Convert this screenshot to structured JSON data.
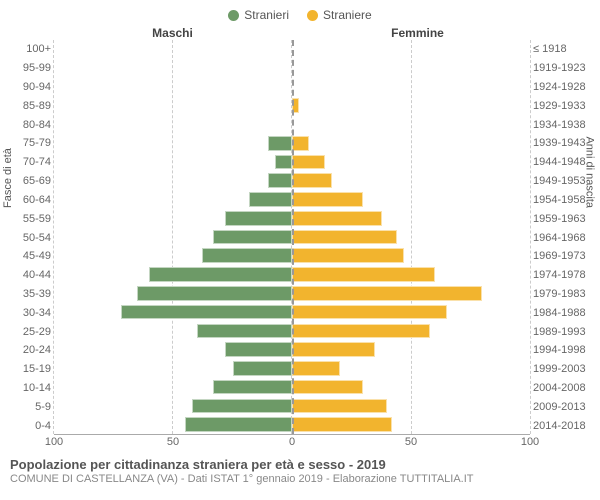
{
  "legend": {
    "male": {
      "label": "Stranieri",
      "color": "#6d9a67"
    },
    "female": {
      "label": "Straniere",
      "color": "#f2b42e"
    }
  },
  "headers": {
    "male": "Maschi",
    "female": "Femmine"
  },
  "axis_titles": {
    "left": "Fasce di età",
    "right": "Anni di nascita"
  },
  "x_axis": {
    "max": 100,
    "ticks": [
      0,
      50,
      100
    ]
  },
  "grid_color": "#cccccc",
  "center_line_color": "#999999",
  "background_color": "#ffffff",
  "rows": [
    {
      "age": "100+",
      "birth": "≤ 1918",
      "m": 0,
      "f": 0
    },
    {
      "age": "95-99",
      "birth": "1919-1923",
      "m": 0,
      "f": 0
    },
    {
      "age": "90-94",
      "birth": "1924-1928",
      "m": 0,
      "f": 0
    },
    {
      "age": "85-89",
      "birth": "1929-1933",
      "m": 0,
      "f": 3
    },
    {
      "age": "80-84",
      "birth": "1934-1938",
      "m": 0,
      "f": 0
    },
    {
      "age": "75-79",
      "birth": "1939-1943",
      "m": 10,
      "f": 7
    },
    {
      "age": "70-74",
      "birth": "1944-1948",
      "m": 7,
      "f": 14
    },
    {
      "age": "65-69",
      "birth": "1949-1953",
      "m": 10,
      "f": 17
    },
    {
      "age": "60-64",
      "birth": "1954-1958",
      "m": 18,
      "f": 30
    },
    {
      "age": "55-59",
      "birth": "1959-1963",
      "m": 28,
      "f": 38
    },
    {
      "age": "50-54",
      "birth": "1964-1968",
      "m": 33,
      "f": 44
    },
    {
      "age": "45-49",
      "birth": "1969-1973",
      "m": 38,
      "f": 47
    },
    {
      "age": "40-44",
      "birth": "1974-1978",
      "m": 60,
      "f": 60
    },
    {
      "age": "35-39",
      "birth": "1979-1983",
      "m": 65,
      "f": 80
    },
    {
      "age": "30-34",
      "birth": "1984-1988",
      "m": 72,
      "f": 65
    },
    {
      "age": "25-29",
      "birth": "1989-1993",
      "m": 40,
      "f": 58
    },
    {
      "age": "20-24",
      "birth": "1994-1998",
      "m": 28,
      "f": 35
    },
    {
      "age": "15-19",
      "birth": "1999-2003",
      "m": 25,
      "f": 20
    },
    {
      "age": "10-14",
      "birth": "2004-2008",
      "m": 33,
      "f": 30
    },
    {
      "age": "5-9",
      "birth": "2009-2013",
      "m": 42,
      "f": 40
    },
    {
      "age": "0-4",
      "birth": "2014-2018",
      "m": 45,
      "f": 42
    }
  ],
  "footer": {
    "title": "Popolazione per cittadinanza straniera per età e sesso - 2019",
    "sub": "COMUNE DI CASTELLANZA (VA) - Dati ISTAT 1° gennaio 2019 - Elaborazione TUTTITALIA.IT"
  }
}
